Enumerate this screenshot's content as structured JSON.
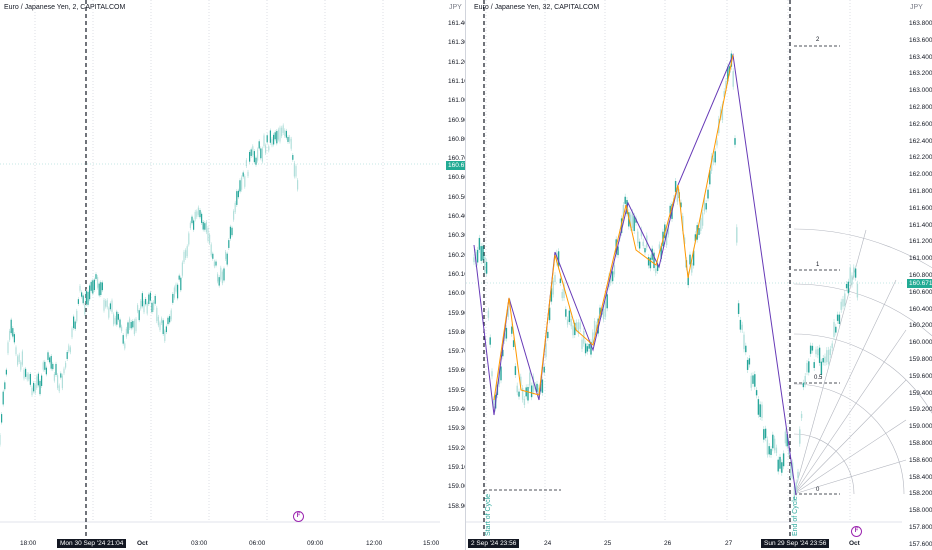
{
  "left": {
    "legend": "Euro / Japanese Yen, 2, CAPITALCOM",
    "currency": "JPY",
    "price_axis": [
      "161.400",
      "161.300",
      "161.200",
      "161.100",
      "161.000",
      "160.900",
      "160.800",
      "160.700",
      "160.600",
      "160.500",
      "160.400",
      "160.300",
      "160.200",
      "160.100",
      "160.000",
      "159.900",
      "159.800",
      "159.700",
      "159.600",
      "159.500",
      "159.400",
      "159.300",
      "159.200",
      "159.100",
      "159.000",
      "158.900"
    ],
    "last_price": "160.671",
    "time_axis": [
      "18:00",
      "Oct",
      "03:00",
      "06:00",
      "09:00",
      "12:00",
      "15:00"
    ],
    "crosshair_time": "Mon 30 Sep '24  21:04",
    "flag_icon": "flag-icon",
    "flag_text": "F"
  },
  "right": {
    "legend": "Euro / Japanese Yen, 32, CAPITALCOM",
    "currency": "JPY",
    "price_axis": [
      "163.800",
      "163.600",
      "163.400",
      "163.200",
      "163.000",
      "162.800",
      "162.600",
      "162.400",
      "162.200",
      "162.000",
      "161.800",
      "161.600",
      "161.400",
      "161.200",
      "161.000",
      "160.800",
      "160.600",
      "160.400",
      "160.200",
      "160.000",
      "159.800",
      "159.600",
      "159.400",
      "159.200",
      "159.000",
      "158.800",
      "158.600",
      "158.400",
      "158.200",
      "158.000",
      "157.800",
      "157.600"
    ],
    "last_price": "160.671",
    "time_axis": [
      "24",
      "25",
      "26",
      "27",
      "Oct"
    ],
    "time_tag_start": "2 Sep '24  23:56",
    "time_tag_end": "Sun 29 Sep '24  23:56",
    "start_label": "Start of Cycle",
    "end_label": "End of Cycle",
    "fib_labels": [
      "2",
      "1",
      "0.5",
      "0"
    ],
    "flag_text": "F"
  },
  "colors": {
    "candle_up": "#26a69a",
    "candle_up_light": "#b2dfdb",
    "purple_line": "#673ab7",
    "orange_line": "#ff9800",
    "last_price": "#22ab94",
    "arc": "#b2b5be"
  }
}
